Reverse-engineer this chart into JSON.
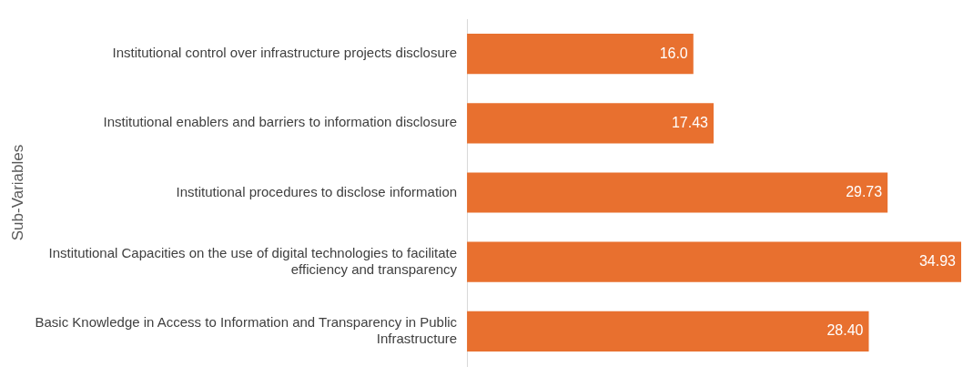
{
  "chart_data": {
    "type": "bar",
    "orientation": "horizontal",
    "ylabel": "Sub-Variables",
    "categories": [
      "Institutional control over infrastructure projects disclosure",
      "Institutional enablers and barriers to information disclosure",
      "Institutional procedures to disclose information",
      "Institutional Capacities on the use of digital technologies to facilitate efficiency and transparency",
      "Basic Knowledge in Access to Information and Transparency in Public Infrastructure"
    ],
    "values": [
      16.0,
      17.43,
      29.73,
      34.93,
      28.4
    ],
    "value_labels": [
      "16.0",
      "17.43",
      "29.73",
      "34.93",
      "28.40"
    ],
    "color": "#e8702f",
    "legend": false
  }
}
